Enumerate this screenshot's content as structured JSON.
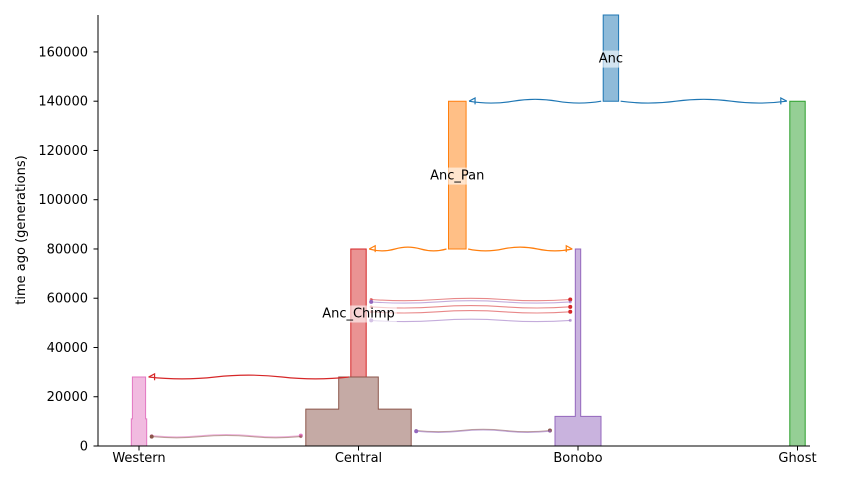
{
  "chart_data": {
    "type": "demography",
    "ylabel": "time ago (generations)",
    "ylim": [
      0,
      175000
    ],
    "yticks": [
      0,
      20000,
      40000,
      60000,
      80000,
      100000,
      120000,
      140000,
      160000
    ],
    "xticks": [
      "Western",
      "Central",
      "Bonobo",
      "Ghost"
    ],
    "demes": [
      {
        "name": "Anc",
        "label": "Anc",
        "color": "#1f77b4",
        "x": 2.15,
        "epochs": [
          {
            "start": 175000,
            "end": 140000,
            "width": 0.07
          }
        ]
      },
      {
        "name": "Anc_Pan",
        "label": "Anc_Pan",
        "color": "#ff7f0e",
        "x": 1.45,
        "epochs": [
          {
            "start": 140000,
            "end": 80000,
            "width": 0.08
          }
        ]
      },
      {
        "name": "Ghost",
        "label": "",
        "color": "#2ca02c",
        "x": 3.0,
        "epochs": [
          {
            "start": 140000,
            "end": 0,
            "width": 0.07
          }
        ]
      },
      {
        "name": "Anc_Chimp",
        "label": "Anc_Chimp",
        "color": "#d62728",
        "x": 1.0,
        "epochs": [
          {
            "start": 80000,
            "end": 28000,
            "width": 0.07
          }
        ]
      },
      {
        "name": "Bonobo",
        "label": "",
        "color": "#9467bd",
        "x": 2.0,
        "epochs": [
          {
            "start": 80000,
            "end": 12000,
            "width": 0.025
          },
          {
            "start": 12000,
            "end": 0,
            "width": 0.21
          }
        ]
      },
      {
        "name": "Central",
        "label": "",
        "color": "#8c564b",
        "x": 1.0,
        "epochs": [
          {
            "start": 28000,
            "end": 15000,
            "width": 0.18
          },
          {
            "start": 15000,
            "end": 0,
            "width": 0.48
          }
        ]
      },
      {
        "name": "Western",
        "label": "",
        "color": "#e377c2",
        "x": 0.0,
        "epochs": [
          {
            "start": 28000,
            "end": 11000,
            "width": 0.06
          },
          {
            "start": 11000,
            "end": 0,
            "width": 0.07
          }
        ]
      }
    ],
    "splits": [
      {
        "from": "Anc",
        "to": "Anc_Pan",
        "time": 140000,
        "color": "#1f77b4"
      },
      {
        "from": "Anc",
        "to": "Ghost",
        "time": 140000,
        "color": "#1f77b4"
      },
      {
        "from": "Anc_Pan",
        "to": "Anc_Chimp",
        "time": 80000,
        "color": "#ff7f0e"
      },
      {
        "from": "Anc_Pan",
        "to": "Bonobo",
        "time": 80000,
        "color": "#ff7f0e"
      },
      {
        "from": "Anc_Chimp",
        "to": "Western",
        "time": 28000,
        "color": "#d62728"
      }
    ],
    "migrations": [
      {
        "from": "Anc_Chimp",
        "to": "Bonobo",
        "time": 59500,
        "color": "#d62728"
      },
      {
        "from": "Bonobo",
        "to": "Anc_Chimp",
        "time": 58500,
        "color": "#9467bd"
      },
      {
        "from": "Anc_Chimp",
        "to": "Bonobo",
        "time": 56500,
        "color": "#d62728"
      },
      {
        "from": "Anc_Chimp",
        "to": "Bonobo",
        "time": 54500,
        "color": "#d62728"
      },
      {
        "from": "Bonobo",
        "to": "Anc_Chimp",
        "time": 51000,
        "color": "#9467bd"
      },
      {
        "from": "Western",
        "to": "Central",
        "time": 4200,
        "color": "#e377c2"
      },
      {
        "from": "Central",
        "to": "Western",
        "time": 3800,
        "color": "#8c564b"
      },
      {
        "from": "Central",
        "to": "Bonobo",
        "time": 6300,
        "color": "#8c564b"
      },
      {
        "from": "Bonobo",
        "to": "Central",
        "time": 6000,
        "color": "#9467bd"
      }
    ]
  }
}
